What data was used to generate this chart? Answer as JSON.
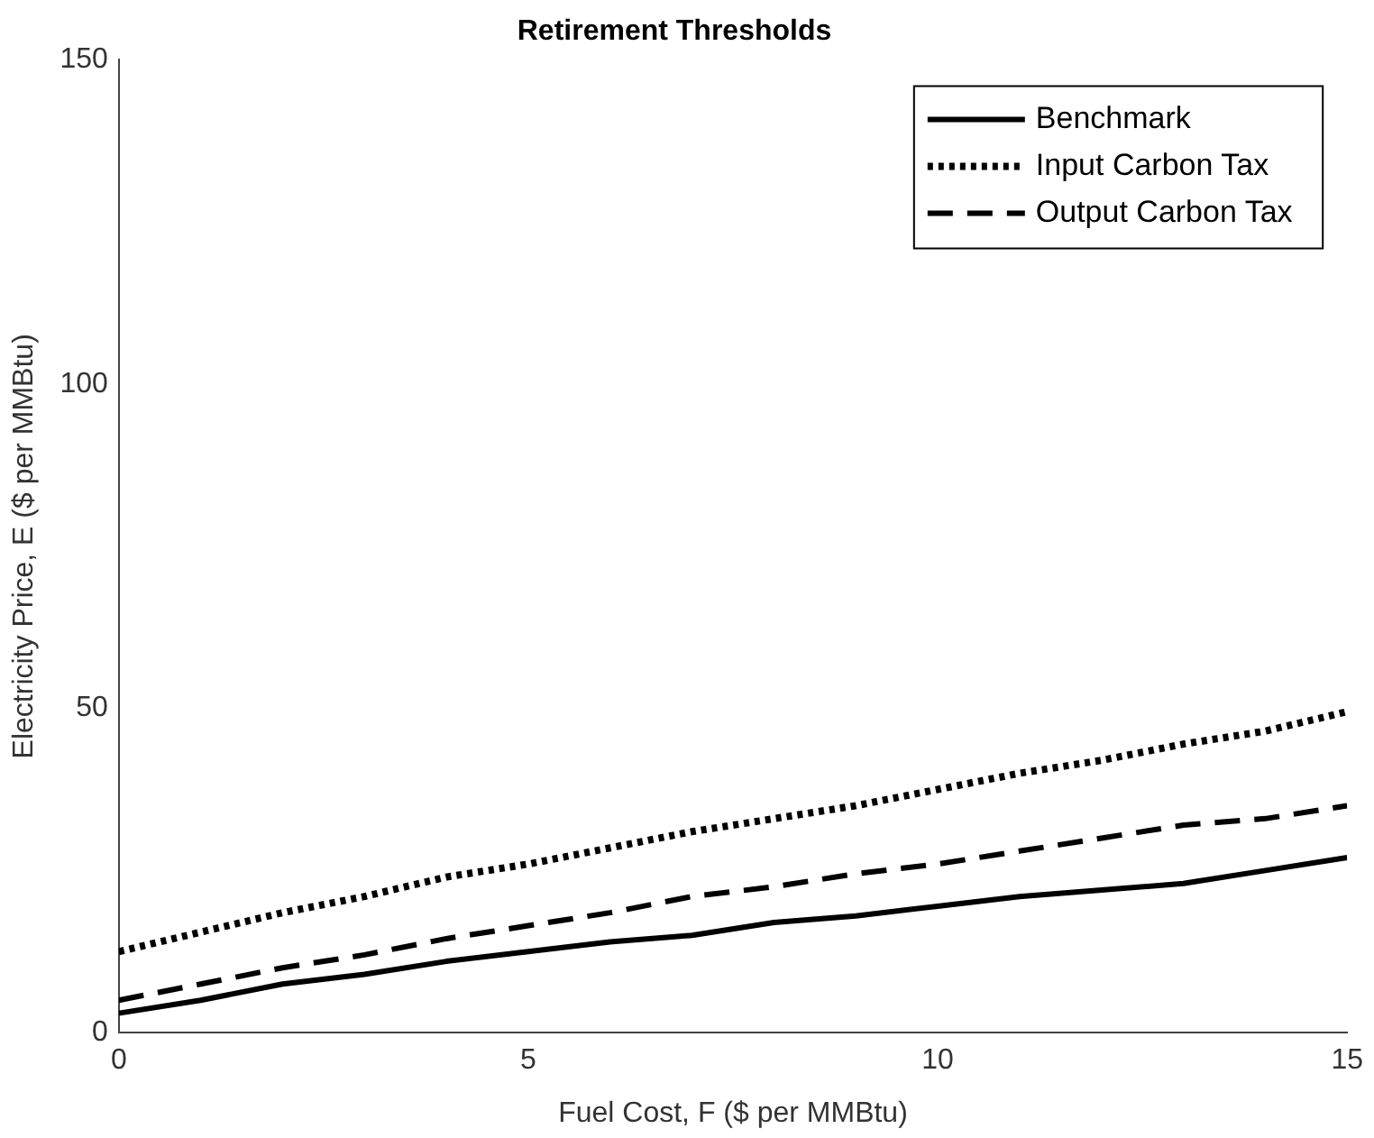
{
  "chart_data": {
    "type": "line",
    "title": "Retirement Thresholds",
    "xlabel": "Fuel Cost, F ($ per MMBtu)",
    "ylabel": "Electricity Price, E ($ per MMBtu)",
    "x": [
      0,
      1,
      2,
      3,
      4,
      5,
      6,
      7,
      8,
      9,
      10,
      11,
      12,
      13,
      14,
      15
    ],
    "series": [
      {
        "name": "Benchmark",
        "color": "#000000",
        "line_style": "solid",
        "values": [
          3,
          5,
          7.5,
          9,
          11,
          12.5,
          14,
          15,
          17,
          18,
          19.5,
          21,
          22,
          23,
          25,
          27
        ]
      },
      {
        "name": "Input Carbon Tax",
        "color": "#000000",
        "line_style": "dotted",
        "values": [
          12.5,
          15.5,
          18.5,
          21,
          24,
          26,
          28.5,
          31,
          33,
          35,
          37.5,
          40,
          42,
          44.5,
          46.5,
          49.5
        ]
      },
      {
        "name": "Output Carbon Tax",
        "color": "#000000",
        "line_style": "dashed",
        "values": [
          5,
          7.5,
          10,
          12,
          14.5,
          16.5,
          18.5,
          21,
          22.5,
          24.5,
          26,
          28,
          30,
          32,
          33,
          35
        ]
      }
    ],
    "xlim": [
      0,
      15
    ],
    "xticks": [
      0,
      5,
      10,
      15
    ],
    "ylim": [
      0,
      150
    ],
    "yticks": [
      0,
      50,
      100,
      150
    ],
    "grid": false,
    "legend": "top right",
    "marker": "none"
  }
}
